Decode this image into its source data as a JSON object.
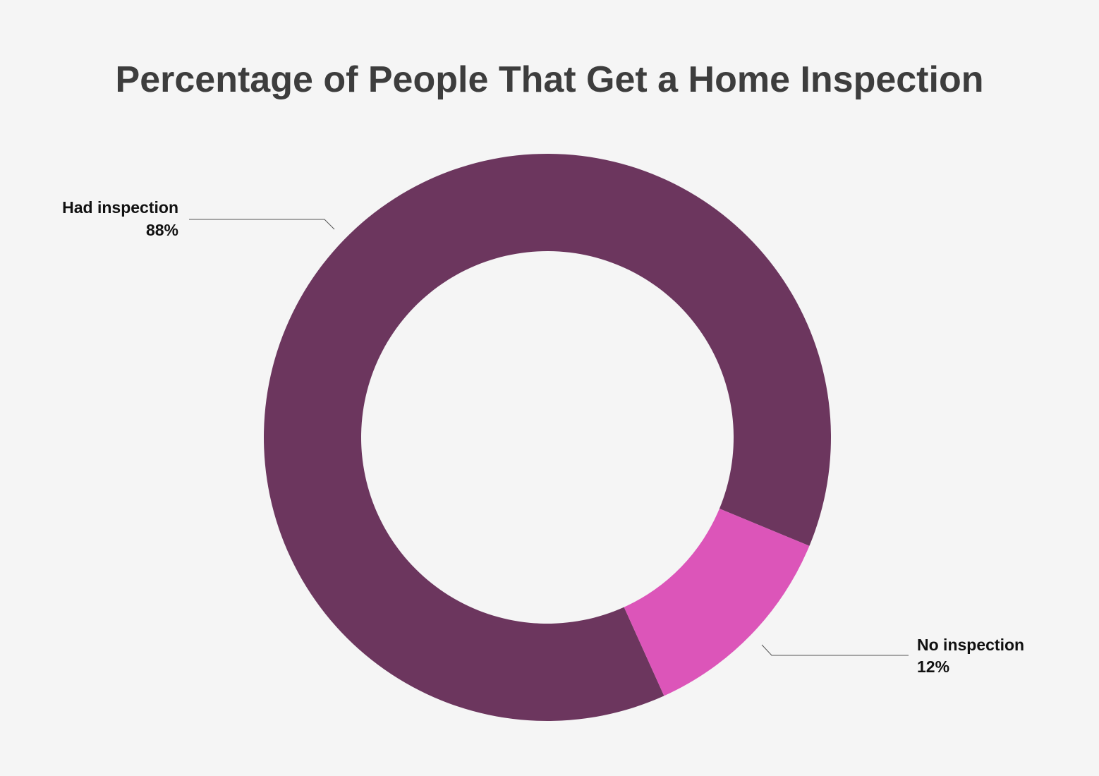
{
  "chart_data": {
    "type": "pie",
    "donut": true,
    "title": "Percentage of People That Get a Home Inspection",
    "categories": [
      "Had inspection",
      "No inspection"
    ],
    "values": [
      88,
      12
    ],
    "value_labels": [
      "88%",
      "12%"
    ],
    "colors": [
      "#6c365e",
      "#dc55b9"
    ]
  }
}
